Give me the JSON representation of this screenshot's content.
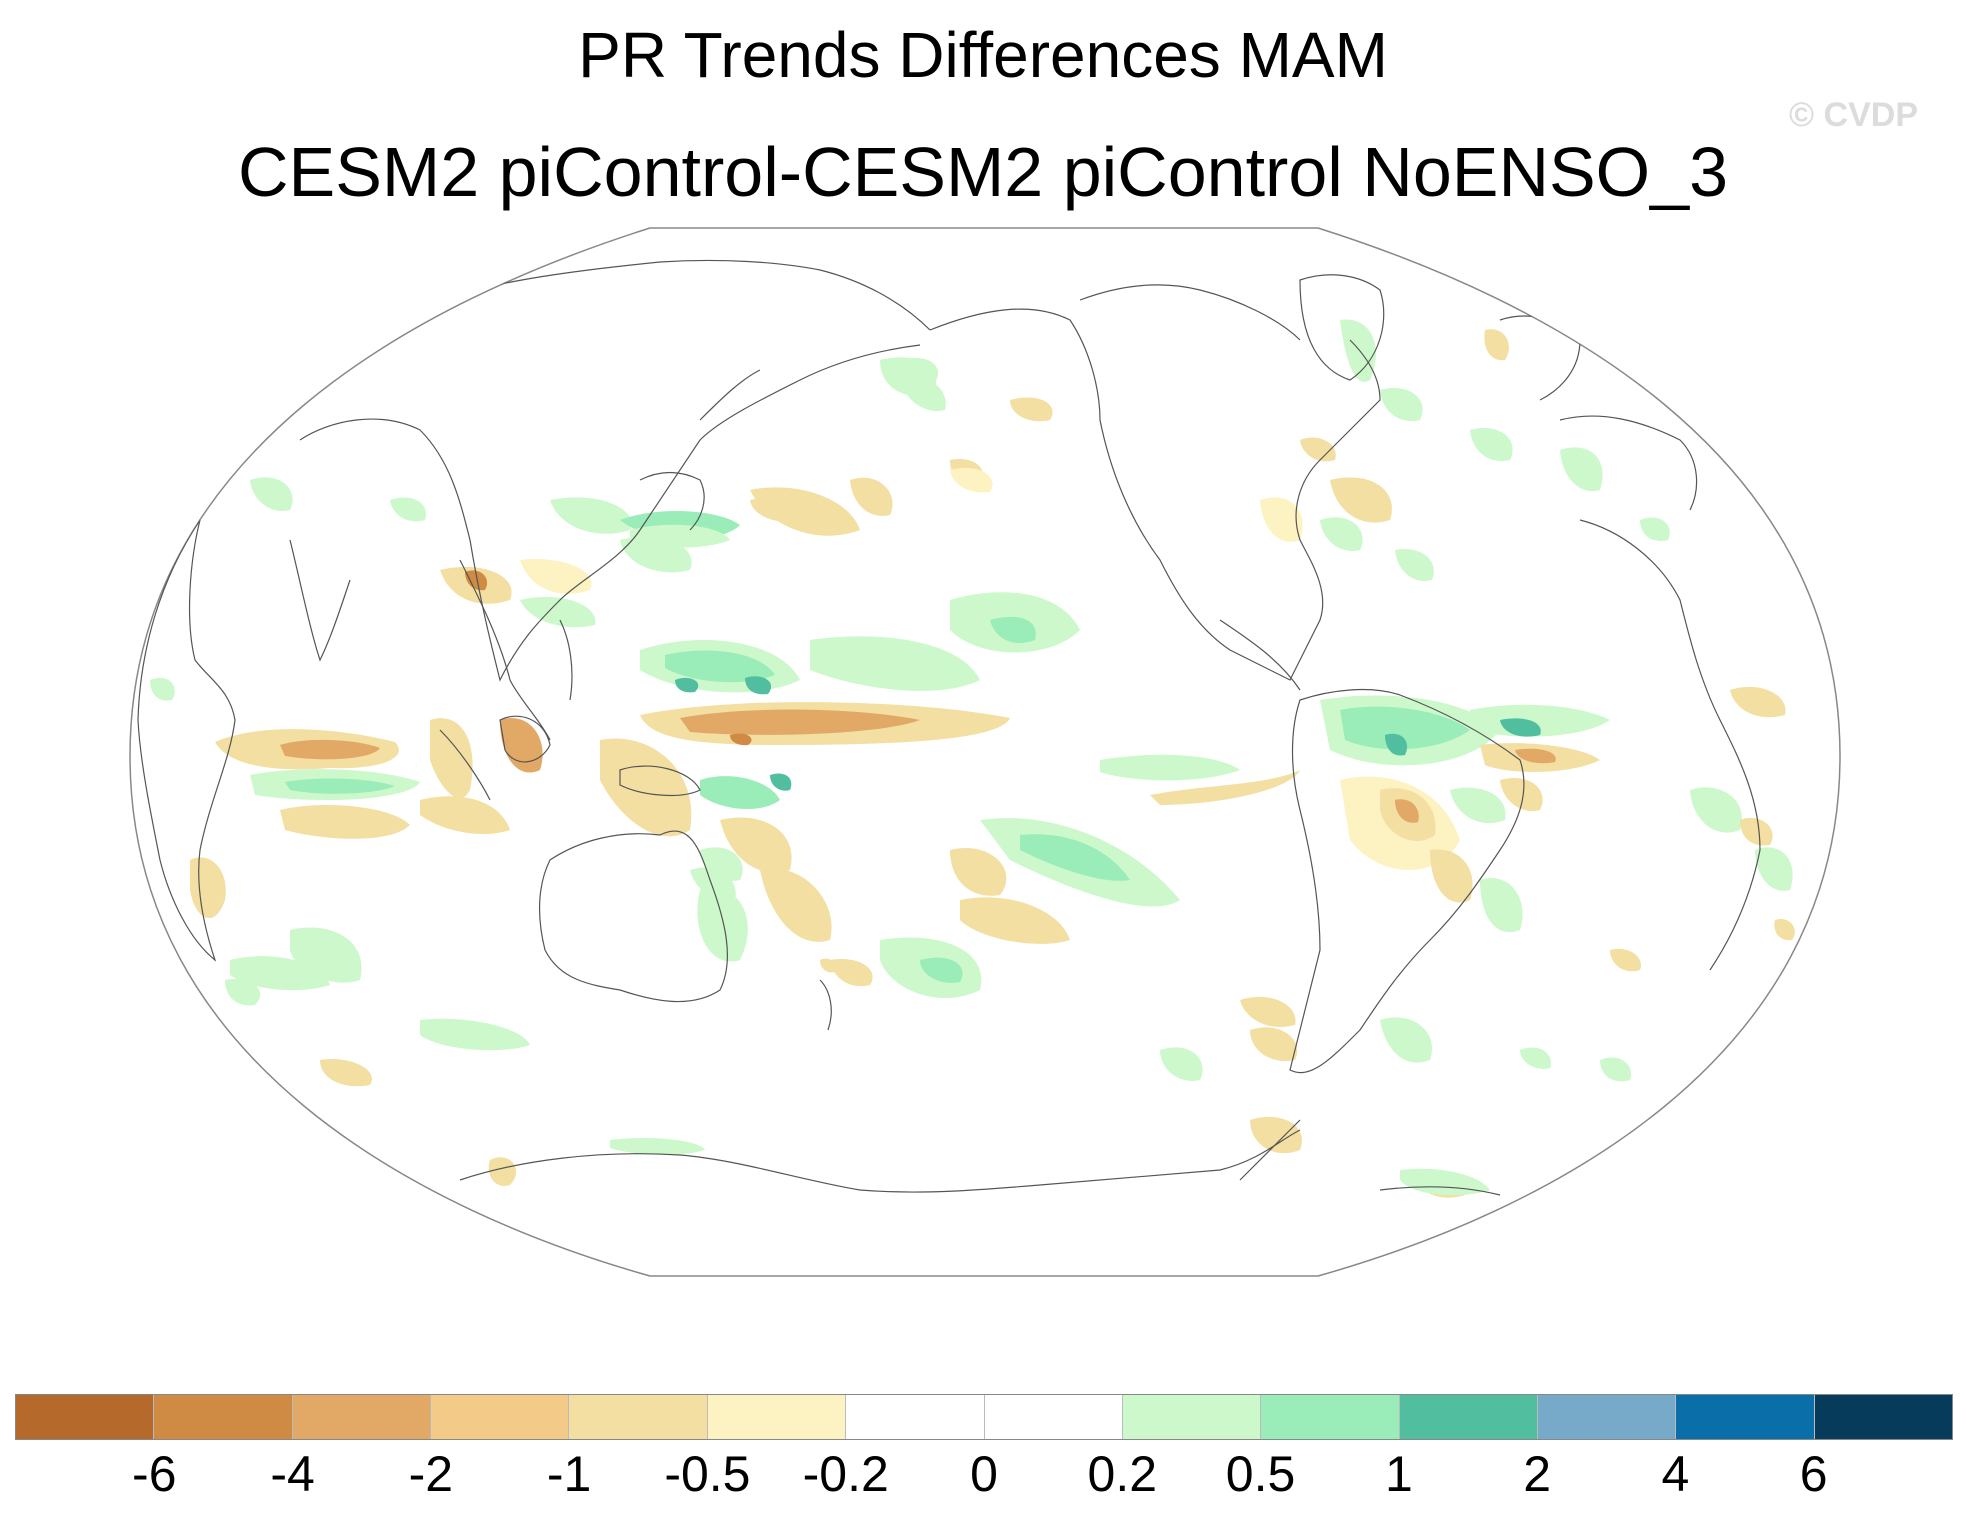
{
  "figure": {
    "title": "PR Trends Differences MAM",
    "subtitle": "CESM2 piControl-CESM2 piControl NoENSO_3",
    "watermark": "© CVDP"
  },
  "colorbar": {
    "colors": [
      "#b5692a",
      "#cf8a43",
      "#e2a865",
      "#f4ca88",
      "#f3dfa2",
      "#fdf3c2",
      "#ffffff",
      "#ffffff",
      "#ccf8cc",
      "#9aecb8",
      "#52bea0",
      "#76aac8",
      "#0a6fa8",
      "#073b5c"
    ],
    "labels": [
      "-6",
      "-4",
      "-2",
      "-1",
      "-0.5",
      "-0.2",
      "0",
      "0.2",
      "0.5",
      "1",
      "2",
      "4",
      "6"
    ]
  },
  "map": {
    "projection": "Robinson",
    "center_longitude": "Pacific",
    "colors": {
      "land_outline": "#555555",
      "frame": "#888888",
      "dry_light": "#fdf3c2",
      "dry_mid": "#f3dfa2",
      "dry_strong": "#e2a865",
      "wet_light": "#ccf8cc",
      "wet_mid": "#9aecb8",
      "wet_strong": "#52bea0"
    }
  }
}
